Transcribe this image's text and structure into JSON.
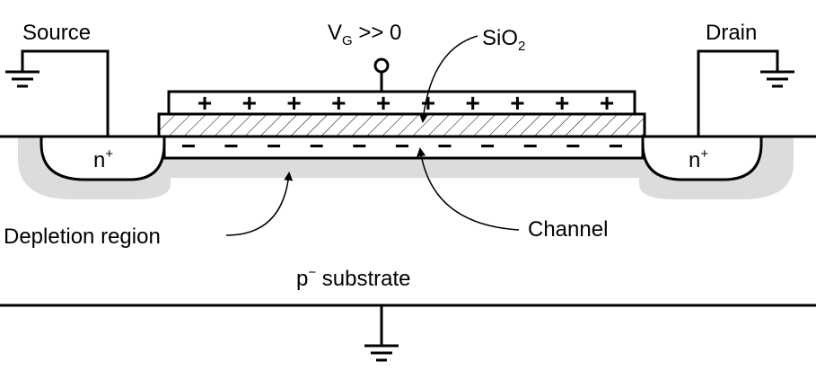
{
  "labels": {
    "source": "Source",
    "drain": "Drain",
    "gate_voltage": {
      "base": "V",
      "sub": "G",
      "rest": " >> 0"
    },
    "oxide": {
      "base": "SiO",
      "sub": "2"
    },
    "n_left": {
      "base": "n",
      "sup": "+"
    },
    "n_right": {
      "base": "n",
      "sup": "+"
    },
    "depletion": "Depletion region",
    "channel": "Channel",
    "substrate": {
      "base": "p",
      "sup": "−",
      "rest": " substrate"
    }
  },
  "gate_charges": [
    "+",
    "+",
    "+",
    "+",
    "+",
    "+",
    "+",
    "+",
    "+",
    "+"
  ],
  "channel_charges": [
    "−",
    "−",
    "−",
    "−",
    "−",
    "−",
    "−",
    "−",
    "−",
    "−",
    "−"
  ],
  "colors": {
    "depletion": "#dcdcdc",
    "line": "#000000",
    "background": "#ffffff"
  }
}
